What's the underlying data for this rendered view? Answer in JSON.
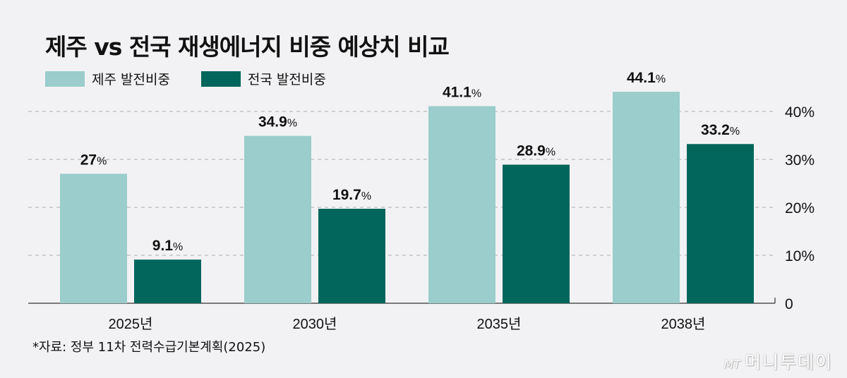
{
  "chart_data": {
    "type": "bar",
    "title": "제주 vs 전국 재생에너지 비중 예상치 비교",
    "categories": [
      "2025년",
      "2030년",
      "2035년",
      "2038년"
    ],
    "series": [
      {
        "name": "제주 발전비중",
        "values": [
          27,
          34.9,
          41.1,
          44.1
        ],
        "labels": [
          "27",
          "34.9",
          "41.1",
          "44.1"
        ],
        "color": "#9acdcc"
      },
      {
        "name": "전국 발전비중",
        "values": [
          9.1,
          19.7,
          28.9,
          33.2
        ],
        "labels": [
          "9.1",
          "19.7",
          "28.9",
          "33.2"
        ],
        "color": "#02665c"
      }
    ],
    "value_suffix": "%",
    "ylim": [
      0,
      40
    ],
    "yticks": [
      0,
      10,
      20,
      30,
      40
    ],
    "ytick_labels": [
      "0",
      "10%",
      "20%",
      "30%",
      "40%"
    ],
    "y_axis_position": "right",
    "grid": true,
    "legend": "top-left"
  },
  "source": "*자료: 정부 11차 전력수급기본계획(2025)",
  "logo": {
    "mark": "MT",
    "text": "머니투데이"
  }
}
